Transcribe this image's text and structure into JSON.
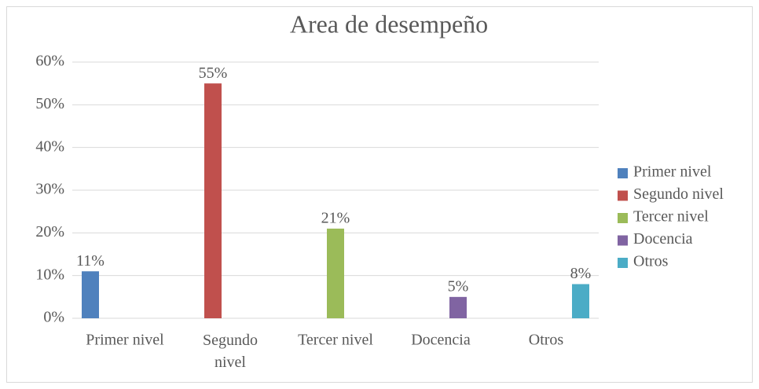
{
  "chart_data": {
    "type": "bar",
    "title": "Area de desempeño",
    "categories": [
      "Primer nivel",
      "Segundo nivel",
      "Tercer nivel",
      "Docencia",
      "Otros"
    ],
    "values": [
      11,
      55,
      21,
      5,
      8
    ],
    "value_labels": [
      "11%",
      "55%",
      "21%",
      "5%",
      "8%"
    ],
    "colors": [
      "#4f81bd",
      "#c0504d",
      "#9bbb59",
      "#8064a2",
      "#4bacc6"
    ],
    "ylim": [
      0,
      60
    ],
    "yticks": [
      {
        "value": 0,
        "label": "0%"
      },
      {
        "value": 10,
        "label": "10%"
      },
      {
        "value": 20,
        "label": "20%"
      },
      {
        "value": 30,
        "label": "30%"
      },
      {
        "value": 40,
        "label": "40%"
      },
      {
        "value": 50,
        "label": "50%"
      },
      {
        "value": 60,
        "label": "60%"
      }
    ],
    "grid": true,
    "legend": "right"
  }
}
